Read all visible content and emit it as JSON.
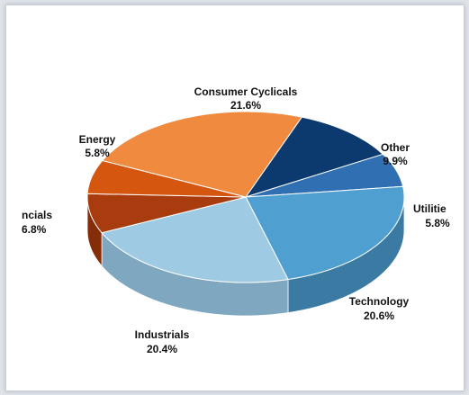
{
  "chart_data": {
    "type": "pie",
    "style": "3d-exploded-perspective",
    "slices": [
      {
        "label": "Consumer Cyclicals",
        "value_text": "21.6%",
        "value": 21.6,
        "color": "#f08a3e",
        "side_color": "#b85e1c"
      },
      {
        "label": "Other",
        "value_text": "9.9%",
        "value": 9.9,
        "color": "#0c3a6e",
        "side_color": "#082a52"
      },
      {
        "label": "Utilitie",
        "value_text": "5.8%",
        "value": 5.8,
        "color": "#2f6fb2",
        "side_color": "#1f4f83"
      },
      {
        "label": "Technology",
        "value_text": "20.6%",
        "value": 20.6,
        "color": "#4f9fd1",
        "side_color": "#3a7aa3"
      },
      {
        "label": "Industrials",
        "value_text": "20.4%",
        "value": 20.4,
        "color": "#9fcae4",
        "side_color": "#7fa7c0"
      },
      {
        "label": "ncials",
        "value_text": "6.8%",
        "value": 6.8,
        "color": "#a83c0e",
        "side_color": "#842d08"
      },
      {
        "label": "Energy",
        "value_text": "5.8%",
        "value": 5.8,
        "color": "#d4560f",
        "side_color": "#a3400a"
      }
    ],
    "legend": "none"
  }
}
